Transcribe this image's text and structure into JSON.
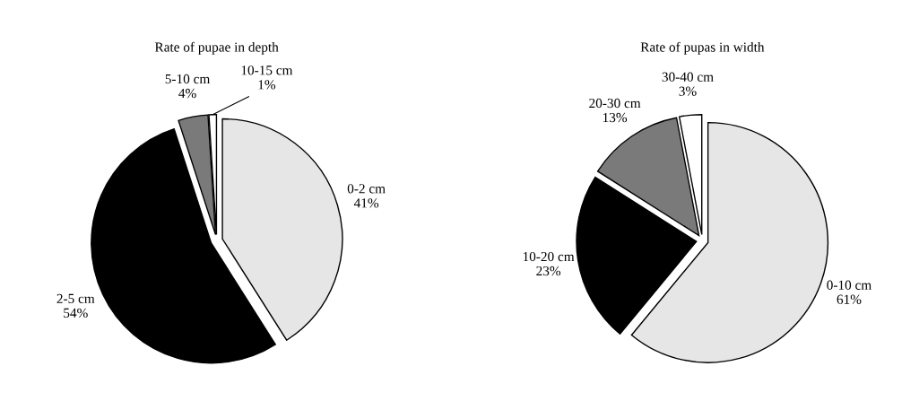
{
  "chart_data": [
    {
      "type": "pie",
      "title": "Rate of pupae in depth",
      "categories": [
        "0-2 cm",
        "2-5 cm",
        "5-10 cm",
        "10-15 cm"
      ],
      "values": [
        41,
        54,
        4,
        1
      ],
      "colors": [
        "#e6e6e6",
        "#000000",
        "#7a7a7a",
        "#ffffff"
      ],
      "value_labels": [
        "41%",
        "54%",
        "4%",
        "1%"
      ]
    },
    {
      "type": "pie",
      "title": "Rate of pupas in width",
      "categories": [
        "0-10 cm",
        "10-20 cm",
        "20-30 cm",
        "30-40 cm"
      ],
      "values": [
        61,
        23,
        13,
        3
      ],
      "colors": [
        "#e6e6e6",
        "#000000",
        "#7a7a7a",
        "#ffffff"
      ],
      "value_labels": [
        "61%",
        "23%",
        "13%",
        "3%"
      ]
    }
  ]
}
